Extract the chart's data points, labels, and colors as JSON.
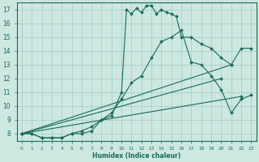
{
  "xlabel": "Humidex (Indice chaleur)",
  "bg_color": "#cce8e0",
  "grid_color": "#aacfc8",
  "line_color": "#1a6b5a",
  "xlim": [
    -0.5,
    23.5
  ],
  "ylim": [
    7.5,
    17.5
  ],
  "xticks": [
    0,
    1,
    2,
    3,
    4,
    5,
    6,
    7,
    8,
    9,
    10,
    11,
    12,
    13,
    14,
    15,
    16,
    17,
    18,
    19,
    20,
    21,
    22,
    23
  ],
  "yticks": [
    8,
    9,
    10,
    11,
    12,
    13,
    14,
    15,
    16,
    17
  ],
  "curve1_x": [
    0,
    1,
    2,
    3,
    4,
    5,
    6,
    7,
    8,
    9,
    10,
    10.5,
    11,
    11.5,
    12,
    12.5,
    13,
    13.5,
    14,
    14.5,
    15,
    15.5,
    16,
    17,
    18,
    19,
    20,
    21,
    22,
    23
  ],
  "curve1_y": [
    8.0,
    8.0,
    7.7,
    7.7,
    7.7,
    8.0,
    8.2,
    8.5,
    9.0,
    9.3,
    11.0,
    17.0,
    16.7,
    17.1,
    16.8,
    17.3,
    17.3,
    16.7,
    17.0,
    16.8,
    16.7,
    16.5,
    15.0,
    15.0,
    14.5,
    14.2,
    13.5,
    13.0,
    14.2,
    14.2
  ],
  "curve2_x": [
    0,
    1,
    2,
    3,
    4,
    5,
    6,
    7,
    8,
    9,
    10,
    11,
    12,
    13,
    14,
    15,
    16,
    17,
    18,
    19,
    20,
    21,
    22,
    23
  ],
  "curve2_y": [
    8.0,
    8.0,
    7.7,
    7.7,
    7.7,
    8.0,
    8.0,
    8.2,
    9.0,
    9.5,
    10.5,
    11.7,
    12.2,
    13.5,
    14.7,
    15.0,
    15.5,
    13.2,
    13.0,
    12.2,
    11.2,
    9.5,
    10.5,
    10.8
  ],
  "line1_x": [
    0,
    21
  ],
  "line1_y": [
    8.0,
    13.0
  ],
  "line2_x": [
    0,
    20
  ],
  "line2_y": [
    8.0,
    12.0
  ],
  "line3_x": [
    0,
    22
  ],
  "line3_y": [
    8.0,
    10.7
  ]
}
